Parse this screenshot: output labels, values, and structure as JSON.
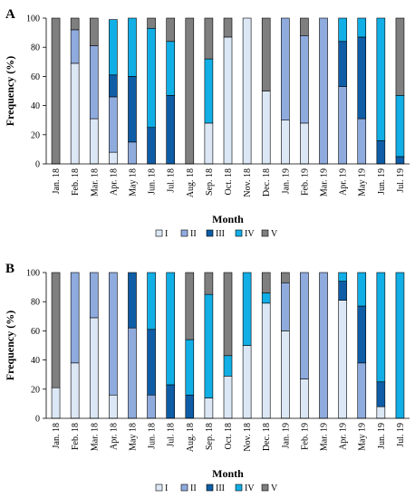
{
  "categories": [
    "I",
    "II",
    "III",
    "IV",
    "V"
  ],
  "colors": {
    "I": "#dbe7f5",
    "II": "#8fabde",
    "III": "#0f5da6",
    "IV": "#12aee6",
    "V": "#7f7f7f"
  },
  "chart_data": [
    {
      "type": "bar",
      "stacked": true,
      "panel": "A",
      "xlabel": "Month",
      "ylabel": "Frequency (%)",
      "ylim": [
        0,
        100
      ],
      "yticks": [
        0,
        20,
        40,
        60,
        80,
        100
      ],
      "legend": "bottom",
      "grid": false,
      "months": [
        "Jan. 18",
        "Feb. 18",
        "Mar. 18",
        "Apr. 18",
        "May 18",
        "Jun. 18",
        "Jul. 18",
        "Aug. 18",
        "Sep. 18",
        "Oct. 18",
        "Nov. 18",
        "Dec. 18",
        "Jan. 19",
        "Feb. 19",
        "Mar. 19",
        "Apr. 19",
        "May 19",
        "Jun. 19",
        "Jul. 19"
      ],
      "series": [
        {
          "name": "I",
          "values": [
            0,
            69,
            31,
            8,
            0,
            0,
            0,
            0,
            28,
            87,
            100,
            50,
            30,
            28,
            0,
            0,
            0,
            0,
            0
          ]
        },
        {
          "name": "II",
          "values": [
            0,
            23,
            50,
            38,
            15,
            0,
            0,
            0,
            0,
            0,
            0,
            0,
            70,
            60,
            100,
            53,
            31,
            0,
            0
          ]
        },
        {
          "name": "III",
          "values": [
            0,
            0,
            0,
            15,
            45,
            25,
            47,
            0,
            0,
            0,
            0,
            0,
            0,
            0,
            0,
            31,
            56,
            16,
            5
          ]
        },
        {
          "name": "IV",
          "values": [
            0,
            0,
            0,
            38,
            40,
            68,
            37,
            0,
            44,
            0,
            0,
            0,
            0,
            0,
            0,
            16,
            13,
            84,
            42
          ]
        },
        {
          "name": "V",
          "values": [
            100,
            8,
            19,
            0,
            0,
            7,
            16,
            100,
            28,
            13,
            0,
            50,
            0,
            12,
            0,
            0,
            0,
            0,
            53
          ]
        }
      ]
    },
    {
      "type": "bar",
      "stacked": true,
      "panel": "B",
      "xlabel": "Month",
      "ylabel": "Frequency (%)",
      "ylim": [
        0,
        100
      ],
      "yticks": [
        0,
        20,
        40,
        60,
        80,
        100
      ],
      "legend": "bottom",
      "grid": false,
      "months": [
        "Jan. 18",
        "Feb. 18",
        "Mar. 18",
        "Apr. 18",
        "May 18",
        "Jun. 18",
        "Jul. 18",
        "Aug. 18",
        "Sep. 18",
        "Oct. 18",
        "Nov. 18",
        "Dec. 18",
        "Jan. 19",
        "Feb. 19",
        "Mar. 19",
        "Apr. 19",
        "May 19",
        "Jun. 19",
        "Jul. 19"
      ],
      "series": [
        {
          "name": "I",
          "values": [
            21,
            38,
            69,
            16,
            0,
            0,
            0,
            0,
            14,
            29,
            50,
            79,
            60,
            27,
            0,
            81,
            0,
            8,
            0
          ]
        },
        {
          "name": "II",
          "values": [
            0,
            62,
            31,
            84,
            62,
            16,
            0,
            0,
            0,
            0,
            0,
            0,
            33,
            73,
            100,
            0,
            38,
            0,
            0
          ]
        },
        {
          "name": "III",
          "values": [
            0,
            0,
            0,
            0,
            38,
            45,
            23,
            16,
            0,
            0,
            0,
            0,
            0,
            0,
            0,
            13,
            39,
            17,
            0
          ]
        },
        {
          "name": "IV",
          "values": [
            0,
            0,
            0,
            0,
            0,
            39,
            77,
            38,
            71,
            14,
            50,
            7,
            0,
            0,
            0,
            6,
            23,
            75,
            100
          ]
        },
        {
          "name": "V",
          "values": [
            79,
            0,
            0,
            0,
            0,
            0,
            0,
            46,
            15,
            57,
            0,
            14,
            7,
            0,
            0,
            0,
            0,
            0,
            0
          ]
        }
      ]
    }
  ]
}
